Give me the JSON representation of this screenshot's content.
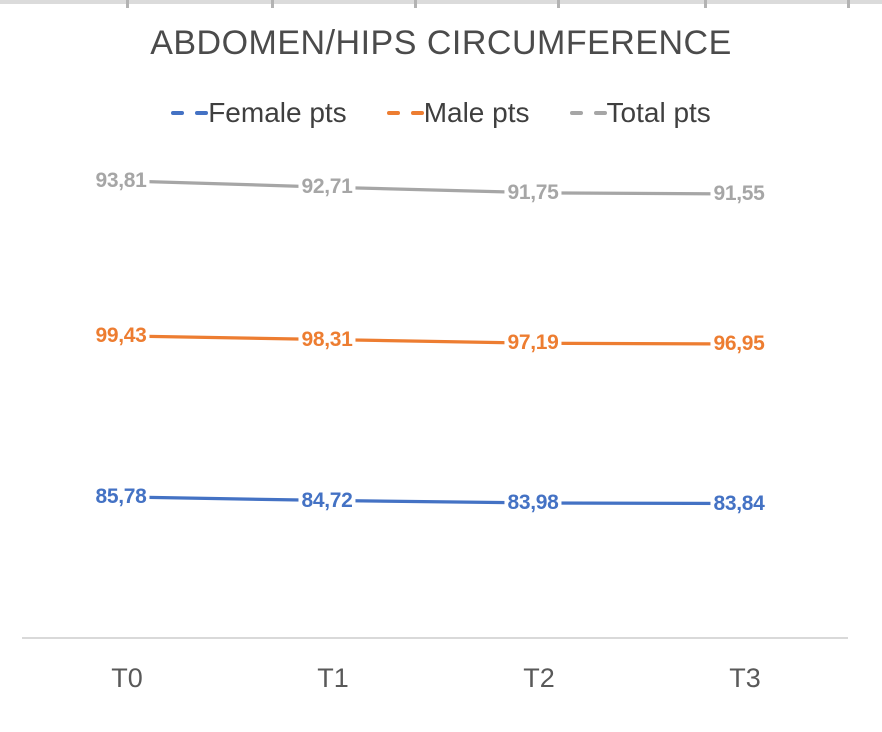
{
  "chart_data": {
    "type": "line",
    "title": "ABDOMEN/HIPS CIRCUMFERENCE",
    "categories": [
      "T0",
      "T1",
      "T2",
      "T3"
    ],
    "series": [
      {
        "name": "Female pts",
        "color": "#4472c4",
        "values": [
          85.78,
          84.72,
          83.98,
          83.84
        ],
        "labels": [
          "85,78",
          "84,72",
          "83,98",
          "83,84"
        ]
      },
      {
        "name": "Male pts",
        "color": "#ed7d31",
        "values": [
          99.43,
          98.31,
          97.19,
          96.95
        ],
        "labels": [
          "99,43",
          "98,31",
          "97,19",
          "96,95"
        ]
      },
      {
        "name": "Total pts",
        "color": "#a6a6a6",
        "values": [
          93.81,
          92.71,
          91.75,
          91.55
        ],
        "labels": [
          "93,81",
          "92,71",
          "91,75",
          "91,55"
        ]
      }
    ],
    "xlabel": "",
    "ylabel": "",
    "y_axis_visible": false,
    "grid": false,
    "legend_position": "top",
    "data_labels": true,
    "decimal_separator": ","
  },
  "colors": {
    "title_text": "#4b4b4b",
    "legend_text": "#3f3f3f",
    "axis_label_text": "#595959",
    "axis_line": "#d9d9d9",
    "top_gridline": "#dbdbdb"
  }
}
